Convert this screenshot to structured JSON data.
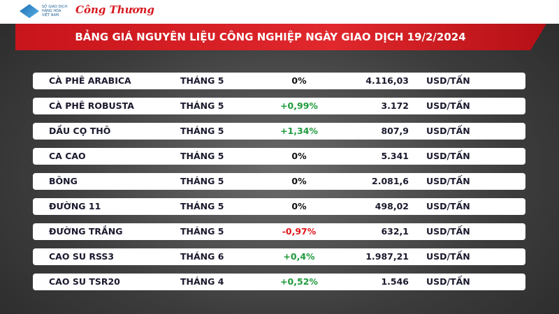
{
  "header": {
    "logos": [
      "SỞ GIAO DỊCH HÀNG HÓA VIỆT NAM",
      "Công Thương"
    ],
    "title": "BẢNG GIÁ NGUYÊN LIỆU CÔNG NGHIỆP NGÀY GIAO DỊCH 19/2/2024"
  },
  "table": {
    "rows": [
      [
        "CÀ PHÊ ARABICA",
        "THÁNG 5",
        "0%",
        "4.116,03",
        "USD/TẤN"
      ],
      [
        "CÀ PHÊ ROBUSTA",
        "THÁNG 5",
        "+0,99%",
        "3.172",
        "USD/TẤN"
      ],
      [
        "DẦU CỌ THÔ",
        "THÁNG 5",
        "+1,34%",
        "807,9",
        "USD/TẤN"
      ],
      [
        "CA CAO",
        "THÁNG 5",
        "0%",
        "5.341",
        "USD/TẤN"
      ],
      [
        "BÔNG",
        "THÁNG 5",
        "0%",
        "2.081,6",
        "USD/TẤN"
      ],
      [
        "ĐƯỜNG 11",
        "THÁNG 5",
        "0%",
        "498,02",
        "USD/TẤN"
      ],
      [
        "ĐƯỜNG TRẮNG",
        "THÁNG 5",
        "-0,97%",
        "632,1",
        "USD/TẤN"
      ],
      [
        "CAO SU RSS3",
        "THÁNG 6",
        "+0,4%",
        "1.987,21",
        "USD/TẤN"
      ],
      [
        "CAO SU TSR20",
        "THÁNG 4",
        "+0,52%",
        "1.546",
        "USD/TẤN"
      ]
    ],
    "change_colors": [
      "#111111",
      "#1f9a3c",
      "#1f9a3c",
      "#111111",
      "#111111",
      "#111111",
      "#e0161b",
      "#1f9a3c",
      "#1f9a3c"
    ]
  }
}
